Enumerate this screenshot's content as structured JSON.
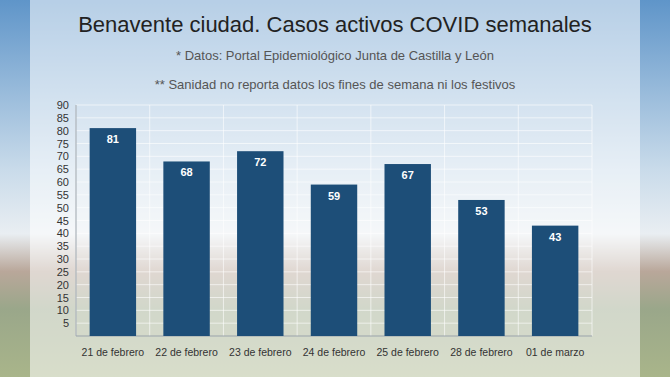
{
  "chart_data": {
    "type": "bar",
    "title": "Benavente ciudad. Casos activos COVID semanales",
    "subtitle": "* Datos: Portal Epidemiológico Junta de Castilla y León",
    "annotations": [
      "** Sanidad no reporta datos los fines de semana ni los festivos"
    ],
    "categories": [
      "21 de febrero",
      "22 de febrero",
      "23 de febrero",
      "24 de febrero",
      "25 de febrero",
      "28 de febrero",
      "01 de marzo"
    ],
    "values": [
      81,
      68,
      72,
      59,
      67,
      53,
      43
    ],
    "color": "#1d4e78",
    "ylim": [
      0,
      90
    ],
    "yticks": [
      5,
      10,
      15,
      20,
      25,
      30,
      35,
      40,
      45,
      50,
      55,
      60,
      65,
      70,
      75,
      80,
      85,
      90
    ],
    "grid": true,
    "data_labels": true
  }
}
